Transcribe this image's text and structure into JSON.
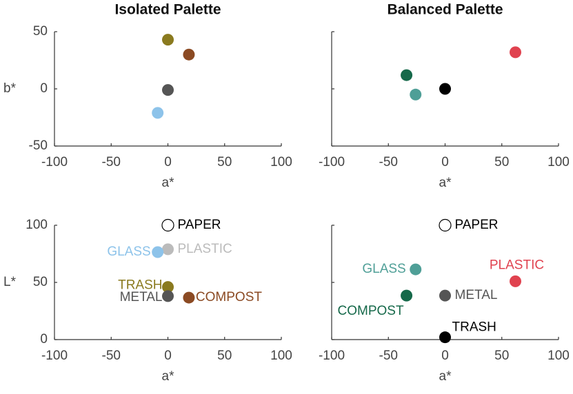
{
  "chart_data": [
    {
      "type": "scatter",
      "title": "Isolated Palette",
      "xlabel": "a*",
      "ylabel": "b*",
      "x": [
        0,
        18.5,
        0,
        -9
      ],
      "y": [
        43,
        30,
        -1,
        -21
      ],
      "colors": [
        "#8a7a1f",
        "#8b4a23",
        "#555555",
        "#8dc3ea"
      ],
      "filled": [
        true,
        true,
        true,
        true
      ],
      "xlim": [
        -100,
        100
      ],
      "ylim": [
        -50,
        50
      ],
      "xticks": [
        -100,
        -50,
        0,
        50,
        100
      ],
      "yticks": [
        -50,
        0,
        50
      ],
      "ytick_labels": true
    },
    {
      "type": "scatter",
      "title": "Balanced Palette",
      "xlabel": "a*",
      "x": [
        62,
        -34,
        -26,
        0
      ],
      "y": [
        32,
        12,
        -5,
        0
      ],
      "colors": [
        "#e0424f",
        "#16694a",
        "#4f9f97",
        "#000000"
      ],
      "filled": [
        true,
        true,
        true,
        true
      ],
      "xlim": [
        -100,
        100
      ],
      "ylim": [
        -50,
        50
      ],
      "xticks": [
        -100,
        -50,
        0,
        50,
        100
      ],
      "yticks": [
        -50,
        0,
        50
      ],
      "ytick_labels": false
    },
    {
      "type": "scatter",
      "xlabel": "a*",
      "ylabel": "L*",
      "x": [
        0,
        0,
        -9,
        0,
        0,
        18.5
      ],
      "y": [
        100,
        79,
        76.5,
        46,
        38,
        36.7
      ],
      "labels": [
        "PAPER",
        "PLASTIC",
        "GLASS",
        "TRASH",
        "METAL",
        "COMPOST"
      ],
      "colors": [
        "#000000",
        "#bbbbbb",
        "#8dc3ea",
        "#8a7a1f",
        "#555555",
        "#8b4a23"
      ],
      "filled": [
        false,
        true,
        true,
        true,
        true,
        true
      ],
      "xlim": [
        -100,
        100
      ],
      "ylim": [
        0,
        100
      ],
      "xticks": [
        -100,
        -50,
        0,
        50,
        100
      ],
      "yticks": [
        0,
        50,
        100
      ],
      "ytick_labels": true
    },
    {
      "type": "scatter",
      "xlabel": "a*",
      "x": [
        0,
        -26,
        62,
        -34,
        0,
        0
      ],
      "y": [
        100,
        61.4,
        51,
        38.5,
        38.5,
        2
      ],
      "labels": [
        "PAPER",
        "GLASS",
        "PLASTIC",
        "COMPOST",
        "METAL",
        "TRASH"
      ],
      "colors": [
        "#000000",
        "#4f9f97",
        "#e0424f",
        "#16694a",
        "#555555",
        "#000000"
      ],
      "filled": [
        false,
        true,
        true,
        true,
        true,
        true
      ],
      "xlim": [
        -100,
        100
      ],
      "ylim": [
        0,
        100
      ],
      "xticks": [
        -100,
        -50,
        0,
        50,
        100
      ],
      "yticks": [
        0,
        50,
        100
      ],
      "ytick_labels": false
    }
  ]
}
